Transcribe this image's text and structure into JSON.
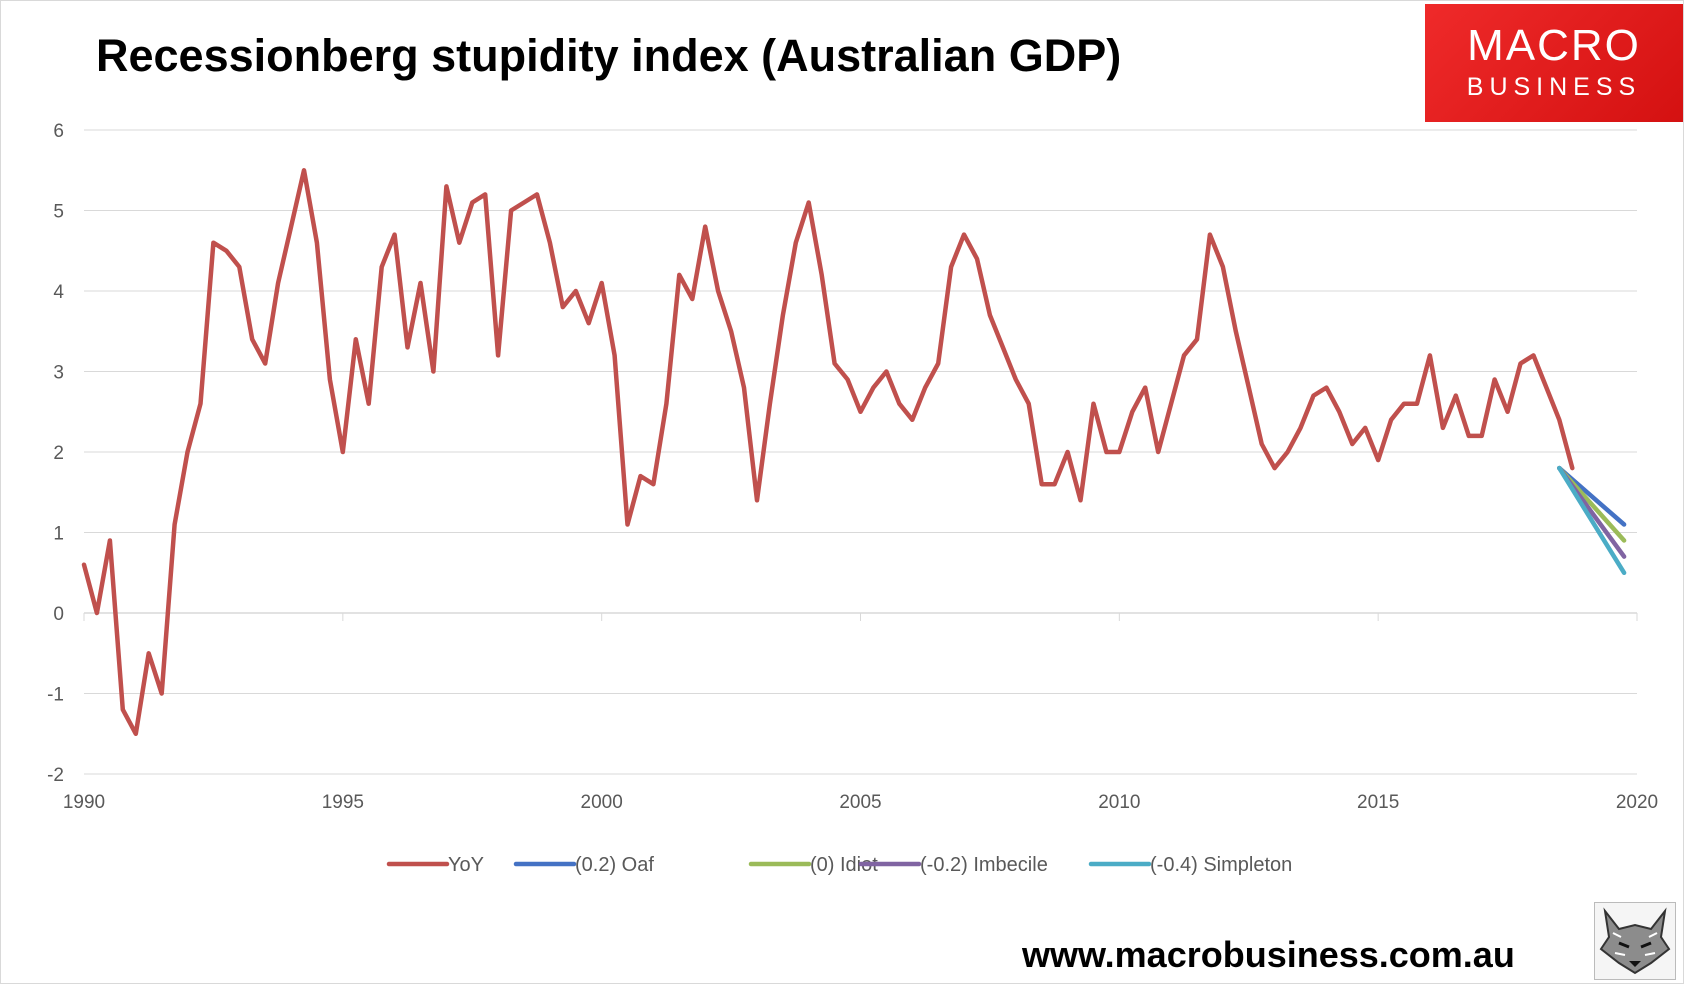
{
  "header": {
    "title": "Recessionberg stupidity index (Australian GDP)"
  },
  "logo": {
    "line1": "MACRO",
    "line2": "BUSINESS"
  },
  "footer": {
    "url": "www.macrobusiness.com.au"
  },
  "colors": {
    "yoy": "#c0504d",
    "oaf": "#4472c4",
    "idiot": "#9bbb59",
    "imbecile": "#8064a2",
    "simpleton": "#4bacc6",
    "logo_red": "#e31b1b",
    "grid": "#d9d9d9"
  },
  "chart_data": {
    "type": "line",
    "title": "Recessionberg stupidity index (Australian GDP)",
    "xlabel": "",
    "ylabel": "",
    "xlim": [
      1990,
      2020
    ],
    "ylim": [
      -2,
      6
    ],
    "x_ticks": [
      1990,
      1995,
      2000,
      2005,
      2010,
      2015,
      2020
    ],
    "y_ticks": [
      -2,
      -1,
      0,
      1,
      2,
      3,
      4,
      5,
      6
    ],
    "grid": "horizontal",
    "legend_position": "bottom",
    "series": [
      {
        "name": "YoY",
        "color_key": "yoy",
        "start": 1990.0,
        "step": 0.25,
        "values": [
          0.6,
          0.0,
          0.9,
          -1.2,
          -1.5,
          -0.5,
          -1.0,
          1.1,
          2.0,
          2.6,
          4.6,
          4.5,
          4.3,
          3.4,
          3.1,
          4.1,
          4.8,
          5.5,
          4.6,
          2.9,
          2.0,
          3.4,
          2.6,
          4.3,
          4.7,
          3.3,
          4.1,
          3.0,
          5.3,
          4.6,
          5.1,
          5.2,
          3.2,
          5.0,
          5.1,
          5.2,
          4.6,
          3.8,
          4.0,
          3.6,
          4.1,
          3.2,
          1.1,
          1.7,
          1.6,
          2.6,
          4.2,
          3.9,
          4.8,
          4.0,
          3.5,
          2.8,
          1.4,
          2.6,
          3.7,
          4.6,
          5.1,
          4.2,
          3.1,
          2.9,
          2.5,
          2.8,
          3.0,
          2.6,
          2.4,
          2.8,
          3.1,
          4.3,
          4.7,
          4.4,
          3.7,
          3.3,
          2.9,
          2.6,
          1.6,
          1.6,
          2.0,
          1.4,
          2.6,
          2.0,
          2.0,
          2.5,
          2.8,
          2.0,
          2.6,
          3.2,
          3.4,
          4.7,
          4.3,
          3.5,
          2.8,
          2.1,
          1.8,
          2.0,
          2.3,
          2.7,
          2.8,
          2.5,
          2.1,
          2.3,
          1.9,
          2.4,
          2.6,
          2.6,
          3.2,
          2.3,
          2.7,
          2.2,
          2.2,
          2.9,
          2.5,
          3.1,
          3.2,
          2.8,
          2.4,
          1.8
        ]
      },
      {
        "name": "(0.2) Oaf",
        "color_key": "oaf",
        "x": [
          2018.5,
          2019.75
        ],
        "values": [
          1.8,
          1.1
        ]
      },
      {
        "name": "(0) Idiot",
        "color_key": "idiot",
        "x": [
          2018.5,
          2019.75
        ],
        "values": [
          1.8,
          0.9
        ]
      },
      {
        "name": "(-0.2) Imbecile",
        "color_key": "imbecile",
        "x": [
          2018.5,
          2019.75
        ],
        "values": [
          1.8,
          0.7
        ]
      },
      {
        "name": "(-0.4) Simpleton",
        "color_key": "simpleton",
        "x": [
          2018.5,
          2019.75
        ],
        "values": [
          1.8,
          0.5
        ]
      }
    ]
  }
}
